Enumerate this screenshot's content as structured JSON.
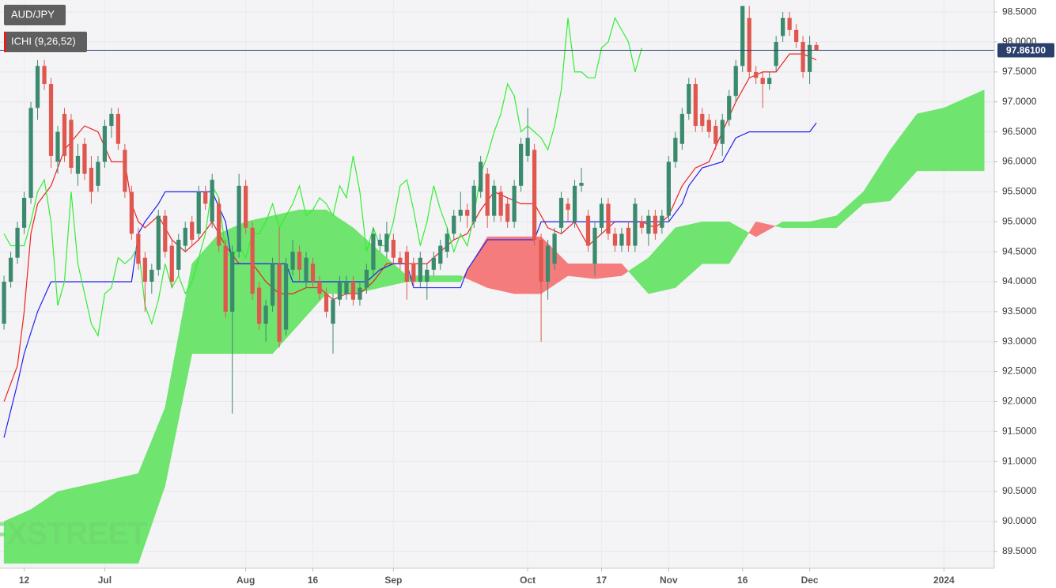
{
  "chart_data": {
    "type": "candlestick",
    "symbol": "AUD/JPY",
    "indicator": "ICHI (9,26,52)",
    "watermark": "FXSTREET",
    "ylim": [
      89.22,
      98.7
    ],
    "xlim": [
      -0.6,
      147.5
    ],
    "yticks": [
      {
        "value": 89.5,
        "label": "89.5000"
      },
      {
        "value": 90,
        "label": "90.0000"
      },
      {
        "value": 90.5,
        "label": "90.5000"
      },
      {
        "value": 91,
        "label": "91.0000"
      },
      {
        "value": 91.5,
        "label": "91.5000"
      },
      {
        "value": 92,
        "label": "92.0000"
      },
      {
        "value": 92.5,
        "label": "92.5000"
      },
      {
        "value": 93,
        "label": "93.0000"
      },
      {
        "value": 93.5,
        "label": "93.5000"
      },
      {
        "value": 94,
        "label": "94.0000"
      },
      {
        "value": 94.5,
        "label": "94.5000"
      },
      {
        "value": 95,
        "label": "95.0000"
      },
      {
        "value": 95.5,
        "label": "95.5000"
      },
      {
        "value": 96,
        "label": "96.0000"
      },
      {
        "value": 96.5,
        "label": "96.5000"
      },
      {
        "value": 97,
        "label": "97.0000"
      },
      {
        "value": 97.5,
        "label": "97.5000"
      },
      {
        "value": 98,
        "label": "98.0000"
      },
      {
        "value": 98.5,
        "label": "98.5000"
      }
    ],
    "xticks": [
      {
        "value": 3,
        "label": "12"
      },
      {
        "value": 15,
        "label": "Jul"
      },
      {
        "value": 36,
        "label": "Aug"
      },
      {
        "value": 46,
        "label": "16"
      },
      {
        "value": 58,
        "label": "Sep"
      },
      {
        "value": 78,
        "label": "Oct"
      },
      {
        "value": 89,
        "label": "17"
      },
      {
        "value": 99,
        "label": "Nov"
      },
      {
        "value": 110,
        "label": "16"
      },
      {
        "value": 120,
        "label": "Dec"
      },
      {
        "value": 140,
        "label": "2024"
      }
    ],
    "grid": true,
    "last_price": {
      "value": 97.861,
      "label": "97.86100",
      "color": "#2b3f6c"
    },
    "candle_colors": {
      "up": "#3b8a6e",
      "down": "#e0574f"
    },
    "candles": [
      [
        93.3,
        94.1,
        93.2,
        94.0
      ],
      [
        94.0,
        94.5,
        93.9,
        94.4
      ],
      [
        94.4,
        95.0,
        94.3,
        94.9
      ],
      [
        94.9,
        95.5,
        94.8,
        95.4
      ],
      [
        95.4,
        97.0,
        95.3,
        96.9
      ],
      [
        96.9,
        97.7,
        96.7,
        97.6
      ],
      [
        97.6,
        97.7,
        97.2,
        97.3
      ],
      [
        97.3,
        97.4,
        95.9,
        96.1
      ],
      [
        96.0,
        96.6,
        95.8,
        96.5
      ],
      [
        96.8,
        96.9,
        96.0,
        96.1
      ],
      [
        96.7,
        96.8,
        95.8,
        95.9
      ],
      [
        95.8,
        96.3,
        95.6,
        96.1
      ],
      [
        96.3,
        96.4,
        95.7,
        95.8
      ],
      [
        95.9,
        96.1,
        95.3,
        95.5
      ],
      [
        95.6,
        96.1,
        95.5,
        96.0
      ],
      [
        96.0,
        96.7,
        95.9,
        96.6
      ],
      [
        96.6,
        96.9,
        96.4,
        96.8
      ],
      [
        96.8,
        96.9,
        96.2,
        96.3
      ],
      [
        96.2,
        96.3,
        95.4,
        95.5
      ],
      [
        95.5,
        95.6,
        94.7,
        94.8
      ],
      [
        94.8,
        94.9,
        94.2,
        94.3
      ],
      [
        94.4,
        94.5,
        93.5,
        94.0
      ],
      [
        94.0,
        94.3,
        93.8,
        94.2
      ],
      [
        94.2,
        95.2,
        94.1,
        95.1
      ],
      [
        95.1,
        95.2,
        94.4,
        94.5
      ],
      [
        94.6,
        94.7,
        93.9,
        94.0
      ],
      [
        94.2,
        94.8,
        94.1,
        94.7
      ],
      [
        94.6,
        95.0,
        94.5,
        94.9
      ],
      [
        95.0,
        95.1,
        94.6,
        94.7
      ],
      [
        94.8,
        95.6,
        94.7,
        95.5
      ],
      [
        95.5,
        95.6,
        95.2,
        95.3
      ],
      [
        95.0,
        95.8,
        94.9,
        95.7
      ],
      [
        95.3,
        95.4,
        94.5,
        94.6
      ],
      [
        94.6,
        94.7,
        93.4,
        93.5
      ],
      [
        93.5,
        94.6,
        91.8,
        94.5
      ],
      [
        94.5,
        95.8,
        94.4,
        95.6
      ],
      [
        95.6,
        95.7,
        94.8,
        94.9
      ],
      [
        94.9,
        95.0,
        93.7,
        93.8
      ],
      [
        93.9,
        94.0,
        93.2,
        93.3
      ],
      [
        93.3,
        93.7,
        93.0,
        93.6
      ],
      [
        93.6,
        94.4,
        93.5,
        94.3
      ],
      [
        94.3,
        94.9,
        92.9,
        93.0
      ],
      [
        93.2,
        94.4,
        93.1,
        94.3
      ],
      [
        94.2,
        94.7,
        94.1,
        94.5
      ],
      [
        94.5,
        94.6,
        94.0,
        94.2
      ],
      [
        94.0,
        94.5,
        93.9,
        94.4
      ],
      [
        94.3,
        94.4,
        93.9,
        94.0
      ],
      [
        94.0,
        94.1,
        93.7,
        93.8
      ],
      [
        93.8,
        93.9,
        93.4,
        93.5
      ],
      [
        93.3,
        93.8,
        92.8,
        93.7
      ],
      [
        93.7,
        94.1,
        93.6,
        94.0
      ],
      [
        93.8,
        94.1,
        93.7,
        94.0
      ],
      [
        94.0,
        94.1,
        93.6,
        93.7
      ],
      [
        93.7,
        94.0,
        93.6,
        93.9
      ],
      [
        93.9,
        94.3,
        93.8,
        94.2
      ],
      [
        94.2,
        94.9,
        94.1,
        94.8
      ],
      [
        94.6,
        94.8,
        94.5,
        94.7
      ],
      [
        94.5,
        95.0,
        94.4,
        94.8
      ],
      [
        94.7,
        94.8,
        94.3,
        94.4
      ],
      [
        94.4,
        94.5,
        94.2,
        94.3
      ],
      [
        94.5,
        94.6,
        93.7,
        94.0
      ],
      [
        94.3,
        94.4,
        93.9,
        94.0
      ],
      [
        94.0,
        94.5,
        93.9,
        94.4
      ],
      [
        94.0,
        94.3,
        93.7,
        94.2
      ],
      [
        94.2,
        94.5,
        94.1,
        94.4
      ],
      [
        94.3,
        94.7,
        94.2,
        94.6
      ],
      [
        94.5,
        94.9,
        94.4,
        94.8
      ],
      [
        94.8,
        95.2,
        94.7,
        95.1
      ],
      [
        95.1,
        95.5,
        95.0,
        95.2
      ],
      [
        95.2,
        95.3,
        94.9,
        95.1
      ],
      [
        95.0,
        95.7,
        94.9,
        95.6
      ],
      [
        95.5,
        96.1,
        95.4,
        96.0
      ],
      [
        95.8,
        95.9,
        94.9,
        95.1
      ],
      [
        95.1,
        95.7,
        95.0,
        95.6
      ],
      [
        95.5,
        95.6,
        95.0,
        95.1
      ],
      [
        95.3,
        95.4,
        94.9,
        95.0
      ],
      [
        95.0,
        95.7,
        94.9,
        95.6
      ],
      [
        95.6,
        96.4,
        95.5,
        96.3
      ],
      [
        96.1,
        96.9,
        96.0,
        96.4
      ],
      [
        96.2,
        96.3,
        94.6,
        94.7
      ],
      [
        94.7,
        94.8,
        93.0,
        94.0
      ],
      [
        94.0,
        94.7,
        93.7,
        94.6
      ],
      [
        94.3,
        94.9,
        94.2,
        94.8
      ],
      [
        94.9,
        95.5,
        94.8,
        95.4
      ],
      [
        95.3,
        95.4,
        95.0,
        95.2
      ],
      [
        95.0,
        95.7,
        94.9,
        95.6
      ],
      [
        95.6,
        95.9,
        95.5,
        95.65
      ],
      [
        95.1,
        95.2,
        94.5,
        94.6
      ],
      [
        94.3,
        95.0,
        94.1,
        94.9
      ],
      [
        94.9,
        95.4,
        94.8,
        95.3
      ],
      [
        95.3,
        95.4,
        94.7,
        94.8
      ],
      [
        94.8,
        94.9,
        94.5,
        94.6
      ],
      [
        94.6,
        94.9,
        94.5,
        94.8
      ],
      [
        94.9,
        95.0,
        94.5,
        94.6
      ],
      [
        94.6,
        95.4,
        94.5,
        95.3
      ],
      [
        95.0,
        95.1,
        94.8,
        94.9
      ],
      [
        94.8,
        95.2,
        94.6,
        95.1
      ],
      [
        95.1,
        95.2,
        94.7,
        94.8
      ],
      [
        94.9,
        95.2,
        94.8,
        95.1
      ],
      [
        95.1,
        96.1,
        95.0,
        96.0
      ],
      [
        96.0,
        96.5,
        95.9,
        96.4
      ],
      [
        96.3,
        96.9,
        96.2,
        96.8
      ],
      [
        96.8,
        97.4,
        96.7,
        97.3
      ],
      [
        97.3,
        97.4,
        96.5,
        96.6
      ],
      [
        96.8,
        96.9,
        96.5,
        96.6
      ],
      [
        96.7,
        96.8,
        96.4,
        96.5
      ],
      [
        96.6,
        96.7,
        96.2,
        96.3
      ],
      [
        96.3,
        96.8,
        96.1,
        96.7
      ],
      [
        96.7,
        97.2,
        96.6,
        97.1
      ],
      [
        97.1,
        97.7,
        97.0,
        97.6
      ],
      [
        97.6,
        98.6,
        97.5,
        98.6
      ],
      [
        98.4,
        98.6,
        97.4,
        97.5
      ],
      [
        97.5,
        97.6,
        97.3,
        97.4
      ],
      [
        97.4,
        97.5,
        96.9,
        97.3
      ],
      [
        97.3,
        97.5,
        97.2,
        97.4
      ],
      [
        97.6,
        98.1,
        97.5,
        98.0
      ],
      [
        98.1,
        98.5,
        98.0,
        98.4
      ],
      [
        98.4,
        98.5,
        98.1,
        98.2
      ],
      [
        98.2,
        98.3,
        97.9,
        98.0
      ],
      [
        98.0,
        98.1,
        97.4,
        97.5
      ],
      [
        97.5,
        98.1,
        97.3,
        97.95
      ],
      [
        97.95,
        98.0,
        97.85,
        97.861
      ]
    ],
    "series": [
      {
        "name": "Tenkan",
        "color": "#ee2222",
        "x": [
          0,
          2,
          3,
          4,
          5,
          7,
          9,
          12,
          14,
          16,
          18,
          19,
          20,
          21,
          23,
          25,
          27,
          29,
          31,
          33,
          35,
          37,
          39,
          41,
          43,
          45,
          47,
          49,
          51,
          53,
          55,
          57,
          59,
          61,
          63,
          65,
          67,
          69,
          71,
          73,
          75,
          77,
          79,
          81,
          83,
          85,
          87,
          89,
          91,
          93,
          95,
          97,
          99,
          101,
          103,
          105,
          107,
          109,
          111,
          113,
          115,
          117,
          119,
          121
        ],
        "values": [
          92.0,
          92.6,
          93.5,
          94.8,
          95.3,
          95.6,
          96.2,
          96.6,
          96.5,
          96.0,
          96.0,
          95.3,
          95.0,
          94.9,
          95.1,
          94.7,
          94.5,
          94.7,
          95.0,
          94.6,
          94.3,
          94.3,
          94.0,
          93.8,
          93.8,
          93.9,
          93.9,
          93.7,
          93.8,
          93.8,
          94.0,
          94.3,
          94.3,
          94.3,
          94.3,
          94.5,
          94.7,
          94.8,
          95.2,
          95.5,
          95.4,
          95.3,
          95.3,
          94.9,
          94.8,
          95.0,
          94.6,
          94.8,
          95.0,
          95.0,
          95.0,
          94.9,
          95.1,
          95.6,
          95.9,
          96.0,
          96.5,
          97.0,
          97.4,
          97.5,
          97.5,
          97.8,
          97.8,
          97.7
        ]
      },
      {
        "name": "Kijun",
        "color": "#2222ee",
        "x": [
          0,
          2,
          3,
          5,
          7,
          19,
          20,
          21,
          23,
          24,
          31,
          33,
          34,
          42,
          43,
          54,
          56,
          58,
          60,
          61,
          68,
          69,
          72,
          79,
          80,
          99,
          101,
          102,
          104,
          107,
          109,
          111,
          120,
          121
        ],
        "values": [
          91.4,
          92.3,
          92.8,
          93.5,
          94.0,
          94.0,
          94.8,
          95.0,
          95.3,
          95.5,
          95.5,
          95.0,
          94.3,
          94.3,
          94.0,
          94.0,
          94.2,
          94.3,
          94.3,
          93.9,
          93.9,
          94.2,
          94.7,
          94.7,
          95.0,
          95.0,
          95.3,
          95.6,
          95.9,
          96.0,
          96.4,
          96.5,
          96.5,
          96.65
        ]
      },
      {
        "name": "Chikou",
        "color": "#33ee33",
        "x": [
          0,
          1,
          3,
          4,
          5,
          6,
          7,
          8,
          9,
          10,
          11,
          12,
          13,
          14,
          15,
          16,
          17,
          18,
          19,
          20,
          21,
          22,
          23,
          24,
          25,
          26,
          27,
          28,
          29,
          30,
          31,
          32,
          33,
          34,
          35,
          36,
          37,
          38,
          39,
          40,
          41,
          42,
          43,
          44,
          45,
          46,
          47,
          48,
          49,
          50,
          51,
          52,
          53,
          54,
          55,
          56,
          57,
          58,
          59,
          60,
          61,
          62,
          63,
          64,
          65,
          66,
          67,
          68,
          69,
          70,
          71,
          72,
          73,
          74,
          75,
          76,
          77,
          78,
          79,
          80,
          81,
          82,
          83,
          84,
          85,
          86,
          87,
          88,
          89,
          90,
          91,
          92,
          93,
          94,
          95
        ],
        "values": [
          94.8,
          94.6,
          94.6,
          95.0,
          95.5,
          95.7,
          95.0,
          93.6,
          94.0,
          95.5,
          94.3,
          93.8,
          93.3,
          93.1,
          93.8,
          93.9,
          94.4,
          94.3,
          94.4,
          94.6,
          93.6,
          93.3,
          93.7,
          94.3,
          93.9,
          94.1,
          93.8,
          94.0,
          94.4,
          94.8,
          95.6,
          95.4,
          94.5,
          94.4,
          94.6,
          94.4,
          94.8,
          94.8,
          95.0,
          95.3,
          94.9,
          95.1,
          95.3,
          95.6,
          95.1,
          95.2,
          95.4,
          95.3,
          95.1,
          95.6,
          95.4,
          96.1,
          95.5,
          94.5,
          94.9,
          94.6,
          94.6,
          95.0,
          95.6,
          95.7,
          95.2,
          94.6,
          95.0,
          95.6,
          95.2,
          94.9,
          94.5,
          94.8,
          94.6,
          95.1,
          95.8,
          96.1,
          96.5,
          96.8,
          97.3,
          97.1,
          96.5,
          96.6,
          96.5,
          96.4,
          96.2,
          96.6,
          97.2,
          98.4,
          97.5,
          97.5,
          97.4,
          97.4,
          97.9,
          98.0,
          98.4,
          98.2,
          98.0,
          97.5,
          97.9
        ]
      }
    ],
    "cloud": {
      "up_color": "#6fe46f",
      "down_color": "#f47c7c",
      "x": [
        0,
        4,
        8,
        12,
        16,
        20,
        24,
        28,
        32,
        36,
        40,
        44,
        48,
        52,
        56,
        60,
        64,
        68,
        72,
        76,
        80,
        84,
        88,
        92,
        96,
        100,
        104,
        108,
        112,
        116,
        120,
        124,
        128,
        132,
        136,
        140,
        144,
        146
      ],
      "span_a": [
        90.0,
        90.2,
        90.5,
        90.6,
        90.7,
        90.8,
        91.9,
        94.3,
        94.8,
        95.0,
        95.1,
        95.2,
        95.2,
        94.9,
        94.5,
        94.1,
        94.1,
        94.1,
        93.9,
        93.8,
        93.8,
        94.1,
        94.05,
        94.1,
        94.4,
        94.9,
        95.0,
        95.0,
        94.75,
        95.0,
        95.0,
        95.1,
        95.5,
        96.2,
        96.8,
        96.9,
        97.1,
        97.2
      ],
      "span_b": [
        89.3,
        89.3,
        89.3,
        89.3,
        89.3,
        89.3,
        90.6,
        92.8,
        92.8,
        92.8,
        92.8,
        93.3,
        93.8,
        93.8,
        93.9,
        94.0,
        94.0,
        94.0,
        94.75,
        94.75,
        94.75,
        94.3,
        94.3,
        94.3,
        93.8,
        93.9,
        94.3,
        94.3,
        95.0,
        94.9,
        94.9,
        94.9,
        95.3,
        95.35,
        95.85,
        95.85,
        95.85,
        95.85
      ]
    }
  }
}
